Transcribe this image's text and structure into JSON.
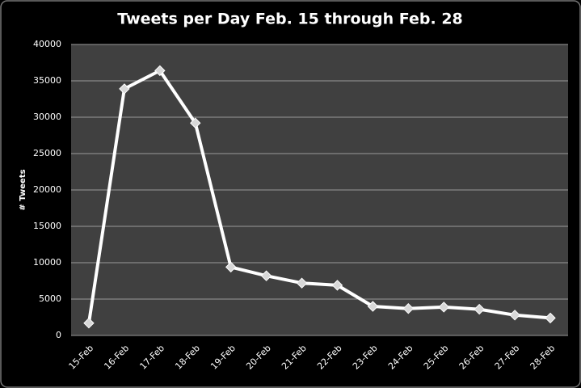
{
  "chart_data": {
    "type": "line",
    "title": "Tweets per Day Feb. 15 through Feb. 28",
    "y_label": "# Tweets",
    "categories": [
      "15-Feb",
      "16-Feb",
      "17-Feb",
      "18-Feb",
      "19-Feb",
      "20-Feb",
      "21-Feb",
      "22-Feb",
      "23-Feb",
      "24-Feb",
      "25-Feb",
      "26-Feb",
      "27-Feb",
      "28-Feb"
    ],
    "series": [
      {
        "name": "Tweets",
        "color": "#ffffff",
        "values": [
          1700,
          33900,
          36400,
          29200,
          9400,
          8200,
          7200,
          6900,
          4000,
          3700,
          3900,
          3600,
          2800,
          2400
        ]
      }
    ],
    "ylim": [
      0,
      40000
    ],
    "yticks": [
      0,
      5000,
      10000,
      15000,
      20000,
      25000,
      30000,
      35000,
      40000
    ],
    "grid": true
  }
}
